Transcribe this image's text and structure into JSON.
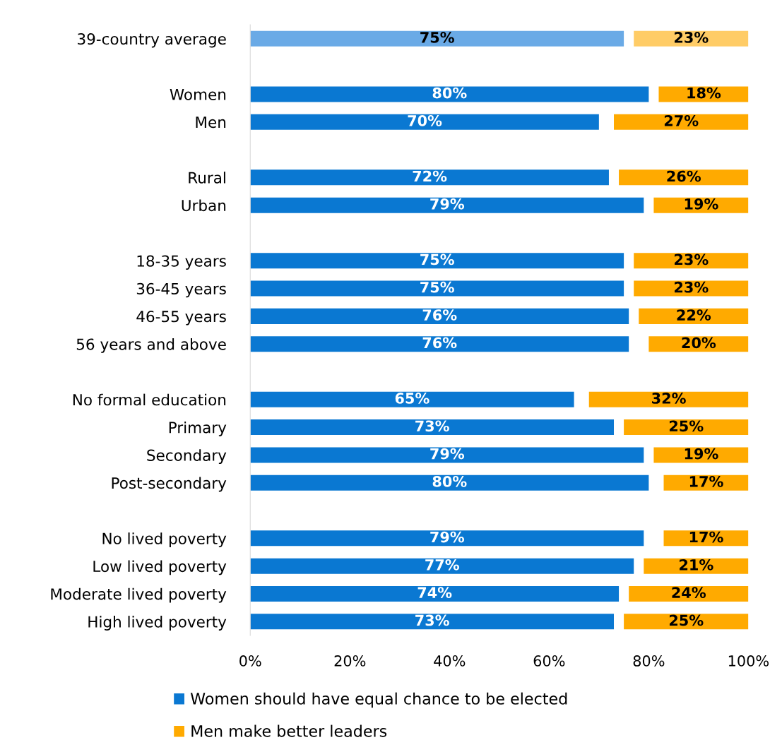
{
  "chart_data": {
    "type": "bar",
    "orientation": "horizontal",
    "categories": [
      "39-country average",
      null,
      "Women",
      "Men",
      null,
      "Rural",
      "Urban",
      null,
      "18-35 years",
      "36-45 years",
      "46-55 years",
      "56 years and above",
      null,
      "No formal education",
      "Primary",
      "Secondary",
      "Post-secondary",
      null,
      "No lived poverty",
      "Low lived poverty",
      "Moderate lived poverty",
      "High lived poverty"
    ],
    "series": [
      {
        "name": "Women should have equal chance to be elected",
        "color": "#0a78d2",
        "colors": [
          "#6aaae6",
          null,
          "#0a78d2",
          "#0a78d2",
          null,
          "#0a78d2",
          "#0a78d2",
          null,
          "#0a78d2",
          "#0a78d2",
          "#0a78d2",
          "#0a78d2",
          null,
          "#0a78d2",
          "#0a78d2",
          "#0a78d2",
          "#0a78d2",
          null,
          "#0a78d2",
          "#0a78d2",
          "#0a78d2",
          "#0a78d2"
        ],
        "values": [
          75,
          null,
          80,
          70,
          null,
          72,
          79,
          null,
          75,
          75,
          76,
          76,
          null,
          65,
          73,
          79,
          80,
          null,
          79,
          77,
          74,
          73
        ],
        "base": [
          0,
          null,
          0,
          0,
          null,
          0,
          0,
          null,
          0,
          0,
          0,
          0,
          null,
          0,
          0,
          0,
          0,
          null,
          0,
          0,
          0,
          0
        ],
        "value_labels": [
          "75%",
          null,
          "80%",
          "70%",
          null,
          "72%",
          "79%",
          null,
          "75%",
          "75%",
          "76%",
          "76%",
          null,
          "65%",
          "73%",
          "79%",
          "80%",
          null,
          "79%",
          "77%",
          "74%",
          "73%"
        ]
      },
      {
        "name": "Men make better leaders",
        "color": "#ffaa00",
        "colors": [
          "#ffcc66",
          null,
          "#ffaa00",
          "#ffaa00",
          null,
          "#ffaa00",
          "#ffaa00",
          null,
          "#ffaa00",
          "#ffaa00",
          "#ffaa00",
          "#ffaa00",
          null,
          "#ffaa00",
          "#ffaa00",
          "#ffaa00",
          "#ffaa00",
          null,
          "#ffaa00",
          "#ffaa00",
          "#ffaa00",
          "#ffaa00"
        ],
        "values": [
          23,
          null,
          18,
          27,
          null,
          26,
          19,
          null,
          23,
          23,
          22,
          20,
          null,
          32,
          25,
          19,
          17,
          null,
          17,
          21,
          24,
          25
        ],
        "base": [
          77,
          null,
          82,
          73,
          null,
          74,
          81,
          null,
          77,
          77,
          78,
          80,
          null,
          68,
          75,
          81,
          83,
          null,
          83,
          79,
          76,
          75
        ],
        "value_labels": [
          "23%",
          null,
          "18%",
          "27%",
          null,
          "26%",
          "19%",
          null,
          "23%",
          "23%",
          "22%",
          "20%",
          null,
          "32%",
          "25%",
          "19%",
          "17%",
          null,
          "17%",
          "21%",
          "24%",
          "25%"
        ]
      }
    ],
    "xlim": [
      0,
      100
    ],
    "xticks": [
      {
        "value": 0,
        "label": "0%"
      },
      {
        "value": 20,
        "label": "20%"
      },
      {
        "value": 40,
        "label": "40%"
      },
      {
        "value": 60,
        "label": "60%"
      },
      {
        "value": 80,
        "label": "80%"
      },
      {
        "value": 100,
        "label": "100%"
      }
    ],
    "grid": false,
    "legend": "bottom"
  }
}
